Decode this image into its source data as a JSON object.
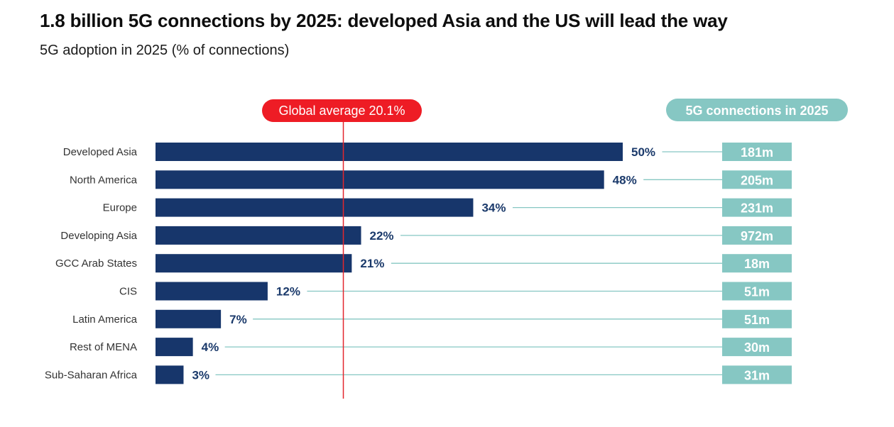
{
  "title": "1.8 billion 5G connections by 2025: developed Asia and the US will lead the way",
  "subtitle": "5G adoption in 2025 (% of connections)",
  "colors": {
    "bar": "#17366b",
    "value_text": "#1b3a6b",
    "average_line": "#e3262d",
    "average_pill": "#ee1c25",
    "connections_box": "#86c7c3",
    "connector_line": "#86c7c3"
  },
  "chart_data": {
    "type": "bar",
    "orientation": "horizontal",
    "title": "1.8 billion 5G connections by 2025: developed Asia and the US will lead the way",
    "subtitle": "5G adoption in 2025 (% of connections)",
    "categories": [
      "Developed Asia",
      "North America",
      "Europe",
      "Developing Asia",
      "GCC Arab States",
      "CIS",
      "Latin America",
      "Rest of MENA",
      "Sub-Saharan Africa"
    ],
    "series": [
      {
        "values": [
          50,
          48,
          34,
          22,
          21,
          12,
          7,
          4,
          3
        ],
        "value_labels": [
          "50%",
          "48%",
          "34%",
          "22%",
          "21%",
          "12%",
          "7%",
          "4%",
          "3%"
        ]
      }
    ],
    "reference_line": {
      "value": 20.1,
      "label": "Global average 20.1%"
    },
    "connections": {
      "header": "5G connections in 2025",
      "labels": [
        "181m",
        "205m",
        "231m",
        "972m",
        "18m",
        "51m",
        "51m",
        "30m",
        "31m"
      ]
    },
    "xlim": [
      0,
      50
    ],
    "grid": false,
    "legend": "none"
  }
}
